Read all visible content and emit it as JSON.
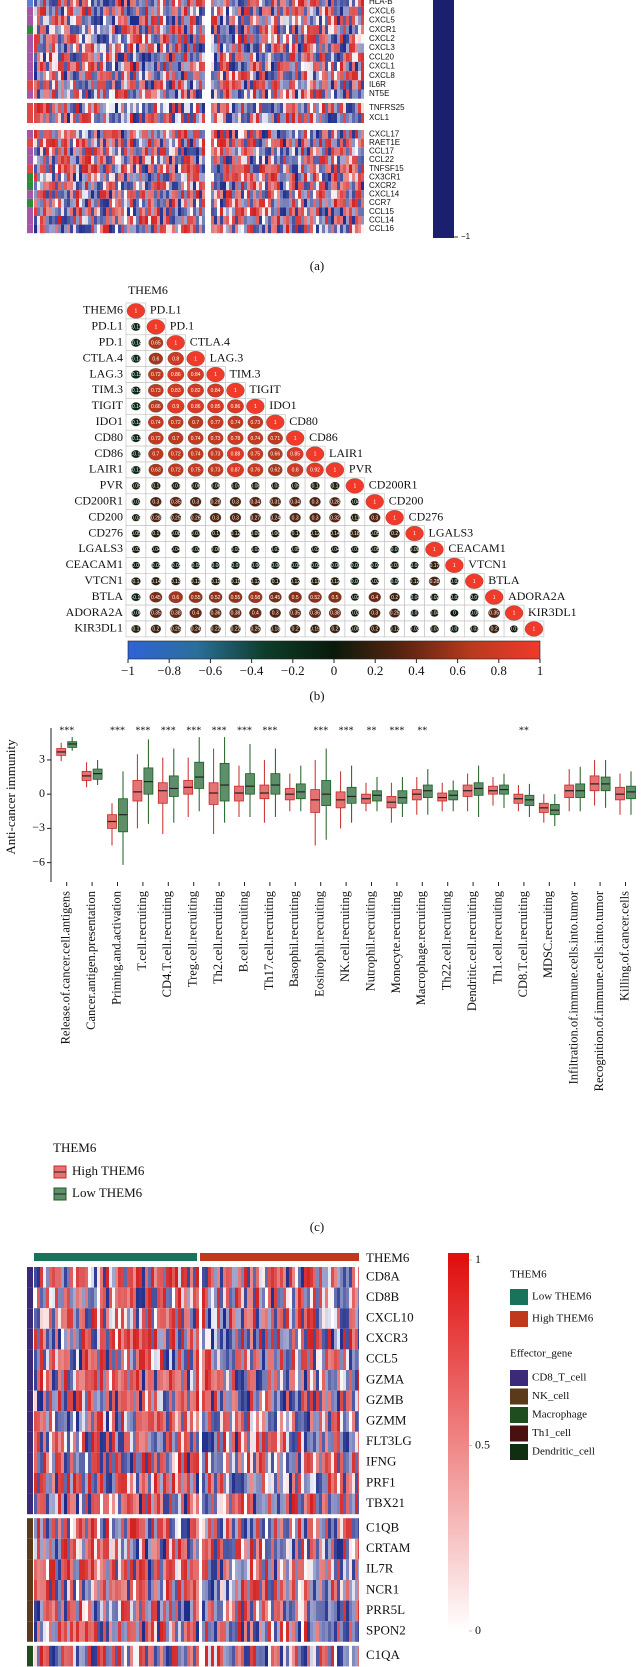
{
  "chart_data": [
    {
      "type": "heatmap",
      "caption": "(a)",
      "colors": [
        "#1c2a8a",
        "#ffffff",
        "#d42020"
      ],
      "colorbar_color": "#1a1f6e",
      "clim": [
        -1,
        1
      ],
      "colorbar_ticks": [
        {
          "value": -1,
          "label": "−1"
        }
      ],
      "row_groups": [
        {
          "rows": [
            "HLA-B",
            "CXCL6",
            "CXCL5",
            "CXCR1",
            "CXCL2",
            "CXCL3",
            "CCL20",
            "CXCL1",
            "CXCL8",
            "IL6R",
            "NT5E"
          ],
          "row_colors": [
            "#5b7fd4",
            "#a855a8",
            "#a855a8",
            "#2e8b3a",
            "#a855a8",
            "#a855a8",
            "#a855a8",
            "#a855a8",
            "#a855a8",
            "#e04848",
            "#a855a8"
          ]
        },
        {
          "rows": [
            "TNFRS25",
            "XCL1"
          ],
          "row_colors": [
            "#e04848",
            "#e04848"
          ]
        },
        {
          "rows": [
            "CXCL17",
            "RAET1E",
            "CCL17",
            "CCL22",
            "TNFSF15",
            "CX3CR1",
            "CXCR2",
            "CXCL14",
            "CCR7",
            "CCL15",
            "CCL14",
            "CCL16"
          ],
          "row_colors": [
            "#a855a8",
            "#e04848",
            "#a855a8",
            "#a855a8",
            "#e04848",
            "#2e8b3a",
            "#2e8b3a",
            "#a855a8",
            "#2e8b3a",
            "#a855a8",
            "#a855a8",
            "#a855a8"
          ]
        }
      ]
    },
    {
      "type": "correlation",
      "caption": "(b)",
      "variables": [
        "THEM6",
        "PD.L1",
        "PD.1",
        "CTLA.4",
        "LAG.3",
        "TIM.3",
        "TIGIT",
        "IDO1",
        "CD80",
        "CD86",
        "LAIR1",
        "PVR",
        "CD200R1",
        "CD200",
        "CD276",
        "LGALS3",
        "CEACAM1",
        "VTCN1",
        "BTLA",
        "ADORA2A",
        "KIR3DL1"
      ],
      "matrix": [
        [
          1
        ],
        [
          -0.11,
          1
        ],
        [
          -0.14,
          0.65,
          1
        ],
        [
          -0.13,
          0.6,
          0.8,
          1
        ],
        [
          -0.15,
          0.72,
          0.86,
          0.84,
          1
        ],
        [
          -0.12,
          0.73,
          0.83,
          0.82,
          0.84,
          1
        ],
        [
          -0.14,
          0.66,
          0.9,
          0.86,
          0.85,
          0.86,
          1
        ],
        [
          -0.12,
          0.74,
          0.72,
          0.7,
          0.77,
          0.74,
          0.73,
          1
        ],
        [
          -0.13,
          0.72,
          0.7,
          0.74,
          0.73,
          0.78,
          0.74,
          0.71,
          1
        ],
        [
          -0.1,
          0.7,
          0.72,
          0.74,
          0.73,
          0.88,
          0.75,
          0.66,
          0.85,
          1
        ],
        [
          -0.12,
          0.63,
          0.72,
          0.75,
          0.73,
          0.87,
          0.76,
          0.62,
          0.8,
          0.92,
          1
        ],
        [
          0.05,
          0.1,
          0.07,
          0.08,
          0.06,
          0.07,
          0.08,
          0.03,
          0.09,
          0.1,
          0.1,
          1
        ],
        [
          -0.03,
          0.3,
          0.35,
          0.3,
          0.28,
          0.3,
          0.34,
          0.31,
          0.34,
          0.3,
          0.28,
          0.04,
          1
        ],
        [
          0.02,
          0.28,
          0.25,
          0.26,
          0.3,
          0.3,
          0.27,
          0.24,
          0.3,
          0.3,
          0.32,
          0.11,
          0.3,
          1
        ],
        [
          0.05,
          0.1,
          0.08,
          0.07,
          0.1,
          0.12,
          0.09,
          0.06,
          0.1,
          0.12,
          0.14,
          0.18,
          0.05,
          0.2,
          1
        ],
        [
          0.03,
          0.04,
          0.04,
          0.02,
          0.06,
          0.03,
          0.02,
          0.03,
          0.05,
          0.02,
          0.04,
          0.01,
          0.05,
          -0.07,
          0.09,
          1
        ],
        [
          -0.01,
          -0.05,
          -0.05,
          -0.05,
          -0.06,
          -0.07,
          -0.06,
          -0.06,
          -0.05,
          -0.05,
          -0.06,
          -0.07,
          -0.02,
          0.07,
          -0.02,
          0.17,
          1
        ],
        [
          0.1,
          0.14,
          0.13,
          0.12,
          0.11,
          0.11,
          0.12,
          0.1,
          0.12,
          0.11,
          0.12,
          -0.07,
          0.03,
          -0.05,
          0.12,
          0.28,
          -0.02,
          1
        ],
        [
          -0.1,
          0.45,
          0.6,
          0.55,
          0.52,
          0.55,
          0.58,
          0.45,
          0.5,
          0.52,
          0.5,
          0.02,
          0.4,
          0.2,
          -0.04,
          0.02,
          -0.02,
          -0.07,
          1
        ],
        [
          -0.06,
          0.35,
          0.38,
          0.4,
          0.36,
          0.38,
          0.4,
          0.3,
          0.35,
          0.36,
          0.38,
          0.02,
          0.3,
          0.25,
          -0.01,
          0.04,
          0,
          -0.05,
          0.35,
          1
        ],
        [
          0.1,
          0.2,
          0.25,
          0.24,
          0.22,
          0.22,
          0.25,
          0.18,
          0.2,
          0.19,
          0.2,
          0.09,
          0.2,
          0.12,
          0.02,
          0.07,
          -0.07,
          0.02,
          0.2,
          0.01,
          1
        ]
      ],
      "colorscale": [
        "#2f63d6",
        "#2a6f9a",
        "#0d3d2a",
        "#0a1a0a",
        "#5a2410",
        "#b83a1e",
        "#f03a2a"
      ],
      "clim": [
        -1,
        1
      ],
      "colorbar_ticks": [
        {
          "value": -1,
          "label": "−1"
        },
        {
          "value": -0.8,
          "label": "−0.8"
        },
        {
          "value": -0.6,
          "label": "−0.6"
        },
        {
          "value": -0.4,
          "label": "−0.4"
        },
        {
          "value": -0.2,
          "label": "−0.2"
        },
        0,
        0.2,
        0.4,
        0.6,
        0.8,
        1
      ]
    },
    {
      "type": "box",
      "caption": "(c)",
      "ylabel": "Anti-cancer immunity",
      "legend_title": "THEM6",
      "categories": [
        "Release.of.cancer.cell.antigens",
        "Cancer.antigen.presentation",
        "Priming.and.activation",
        "T.cell.recruiting",
        "CD4.T.cell.recruiting",
        "Treg.cell.recruiting",
        "Th2.cell.recruiting",
        "B.cell.recruiting",
        "Th17.cell.recruiting",
        "Basophil.recruiting",
        "Eosinophil.recruiting",
        "NK.cell.recruiting",
        "Nutrophil.recruiting",
        "Monocyte.recruiting",
        "Macrophage.recruiting",
        "Th22.cell.recruiting",
        "Dendritic.cell.recruiting",
        "Th1.cell.recruiting",
        "CD8.T.cell.recruiting",
        "MDSC.recruiting",
        "Infiltration.of.immune.cells.into.tumor",
        "Recognition.of.immune.cells.into.tumor",
        "Killing.of.cancer.cells"
      ],
      "significance": [
        "***",
        null,
        "***",
        "***",
        "***",
        "***",
        "***",
        "***",
        "***",
        null,
        "***",
        "***",
        "**",
        "***",
        "**",
        null,
        null,
        null,
        "**",
        null,
        null,
        null,
        null
      ],
      "ylim": [
        -7.7,
        5.8
      ],
      "yticks": [
        {
          "value": -6,
          "label": "−6"
        },
        {
          "value": -3,
          "label": "−3"
        },
        0,
        3
      ],
      "series": [
        {
          "name": "High THEM6",
          "color": "#c62828",
          "fill": "#e57373",
          "min": [
            2.9,
            0.6,
            -4.5,
            -3.0,
            -3.5,
            -2.0,
            -3.5,
            -2.0,
            -2.5,
            -1.5,
            -4.5,
            -3.0,
            -1.5,
            -2.5,
            -1.8,
            -1.5,
            -1.5,
            -1.0,
            -1.5,
            -2.5,
            -1.5,
            -1.0,
            -1.8
          ],
          "q1": [
            3.4,
            1.2,
            -3.0,
            -0.6,
            -0.8,
            0.0,
            -0.9,
            -0.6,
            -0.4,
            -0.5,
            -1.6,
            -1.2,
            -0.8,
            -1.2,
            -0.5,
            -0.6,
            -0.2,
            0.0,
            -0.8,
            -1.6,
            -0.3,
            0.3,
            -0.5
          ],
          "median": [
            3.7,
            1.6,
            -2.4,
            0.2,
            0.3,
            0.6,
            0.1,
            0.1,
            0.1,
            0.0,
            -0.5,
            -0.5,
            -0.4,
            -0.7,
            0.0,
            -0.3,
            0.3,
            0.3,
            -0.4,
            -1.2,
            0.3,
            0.9,
            0.0
          ],
          "q3": [
            4.0,
            2.0,
            -1.8,
            1.2,
            1.0,
            1.2,
            1.0,
            0.7,
            0.8,
            0.5,
            0.4,
            0.2,
            0.0,
            -0.2,
            0.4,
            0.1,
            0.8,
            0.7,
            0.0,
            -0.8,
            0.8,
            1.6,
            0.6
          ],
          "max": [
            4.5,
            2.8,
            -0.8,
            3.5,
            3.2,
            3.2,
            4.0,
            2.5,
            3.0,
            1.8,
            3.0,
            2.0,
            1.0,
            1.0,
            1.5,
            1.0,
            1.8,
            1.5,
            0.8,
            0.0,
            2.2,
            3.0,
            1.8
          ]
        },
        {
          "name": "Low THEM6",
          "color": "#1b5e20",
          "fill": "#5e8f6a",
          "min": [
            3.8,
            0.8,
            -6.2,
            -2.6,
            -2.5,
            -1.5,
            -2.5,
            -2.0,
            -2.0,
            -1.5,
            -4.0,
            -2.5,
            -1.5,
            -2.0,
            -1.8,
            -1.5,
            -2.0,
            -1.2,
            -2.0,
            -2.8,
            -1.5,
            -1.2,
            -1.8
          ],
          "q1": [
            4.1,
            1.3,
            -3.3,
            0.0,
            -0.2,
            0.5,
            -0.6,
            0.0,
            0.0,
            -0.4,
            -1.0,
            -0.8,
            -0.6,
            -0.8,
            -0.3,
            -0.5,
            -0.1,
            0.0,
            -1.0,
            -1.8,
            -0.3,
            0.3,
            -0.4
          ],
          "median": [
            4.4,
            1.8,
            -1.8,
            1.1,
            0.5,
            1.5,
            0.8,
            0.7,
            0.8,
            0.2,
            0.0,
            -0.2,
            -0.1,
            -0.3,
            0.3,
            -0.1,
            0.5,
            0.4,
            -0.5,
            -1.4,
            0.3,
            0.9,
            0.2
          ],
          "q3": [
            4.6,
            2.2,
            -0.4,
            2.3,
            1.6,
            2.8,
            2.7,
            1.8,
            1.8,
            0.9,
            1.2,
            0.6,
            0.3,
            0.3,
            0.8,
            0.3,
            1.0,
            0.8,
            -0.1,
            -0.9,
            0.9,
            1.5,
            0.7
          ],
          "max": [
            5.0,
            3.0,
            2.0,
            4.8,
            4.0,
            5.0,
            5.0,
            4.4,
            4.0,
            2.5,
            4.0,
            2.5,
            1.5,
            1.5,
            2.2,
            1.2,
            2.5,
            1.8,
            0.9,
            0.0,
            2.4,
            3.0,
            2.0
          ]
        }
      ]
    },
    {
      "type": "heatmap",
      "annotation_title": "THEM6",
      "legend_title": "THEM6",
      "effector_title": "Effector_gene",
      "colors": [
        "#1c2a8a",
        "#ffffff",
        "#d42020"
      ],
      "column_groups": [
        {
          "name": "Low THEM6",
          "color": "#17735a"
        },
        {
          "name": "High THEM6",
          "color": "#c0391c"
        }
      ],
      "row_groups": [
        {
          "name": "CD8_T_cell",
          "color": "#3b2a7a",
          "rows": [
            "CD8A",
            "CD8B",
            "CXCL10",
            "CXCR3",
            "CCL5",
            "GZMA",
            "GZMB",
            "GZMM",
            "FLT3LG",
            "IFNG",
            "PRF1",
            "TBX21"
          ]
        },
        {
          "name": "NK_cell",
          "color": "#5a3a1a",
          "rows": [
            "C1QB",
            "CRTAM",
            "IL7R",
            "NCR1",
            "PRR5L",
            "SPON2"
          ]
        },
        {
          "name": "Macrophage",
          "color": "#1f4d20",
          "rows": [
            "C1QA"
          ]
        },
        {
          "name": "Th1_cell",
          "color": "#4a1010",
          "rows": []
        },
        {
          "name": "Dendritic_cell",
          "color": "#0f2f10",
          "rows": []
        }
      ],
      "colorbar_colors": [
        "#ffffff",
        "#e01010"
      ],
      "clim": [
        0,
        1
      ],
      "colorbar_ticks": [
        0,
        0.5,
        1
      ]
    }
  ]
}
